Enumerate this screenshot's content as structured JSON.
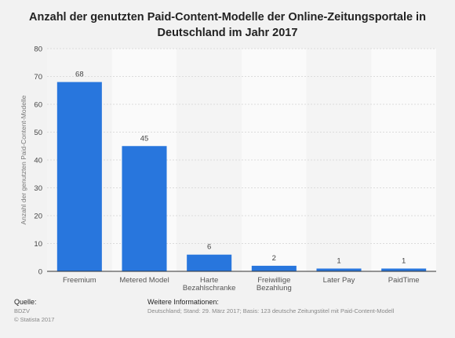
{
  "chart_data": {
    "type": "bar",
    "title": "Anzahl der genutzten Paid-Content-Modelle der Online-Zeitungsportale in Deutschland im Jahr 2017",
    "title_lines": [
      "Anzahl der genutzten Paid-Content-Modelle der Online-Zeitungsportale in",
      "Deutschland im Jahr 2017"
    ],
    "ylabel": "Anzahl der genutzten Paid-Content-Modelle",
    "xlabel": "",
    "categories": [
      [
        "Freemium"
      ],
      [
        "Metered Model"
      ],
      [
        "Harte",
        "Bezahlschranke"
      ],
      [
        "Freiwillige",
        "Bezahlung"
      ],
      [
        "Later Pay"
      ],
      [
        "PaidTime"
      ]
    ],
    "values": [
      68,
      45,
      6,
      2,
      1,
      1
    ],
    "ylim": [
      0,
      80
    ],
    "yticks": [
      0,
      10,
      20,
      30,
      40,
      50,
      60,
      70,
      80
    ],
    "grid": true,
    "legend": "none",
    "bar_color": "#2876dd"
  },
  "footer": {
    "source_label": "Quelle:",
    "source_lines": [
      "BDZV",
      "© Statista 2017"
    ],
    "info_label": "Weitere Informationen:",
    "info_text": "Deutschland; Stand: 29. März 2017; Basis: 123 deutsche Zeitungstitel mit Paid-Content-Modell"
  }
}
